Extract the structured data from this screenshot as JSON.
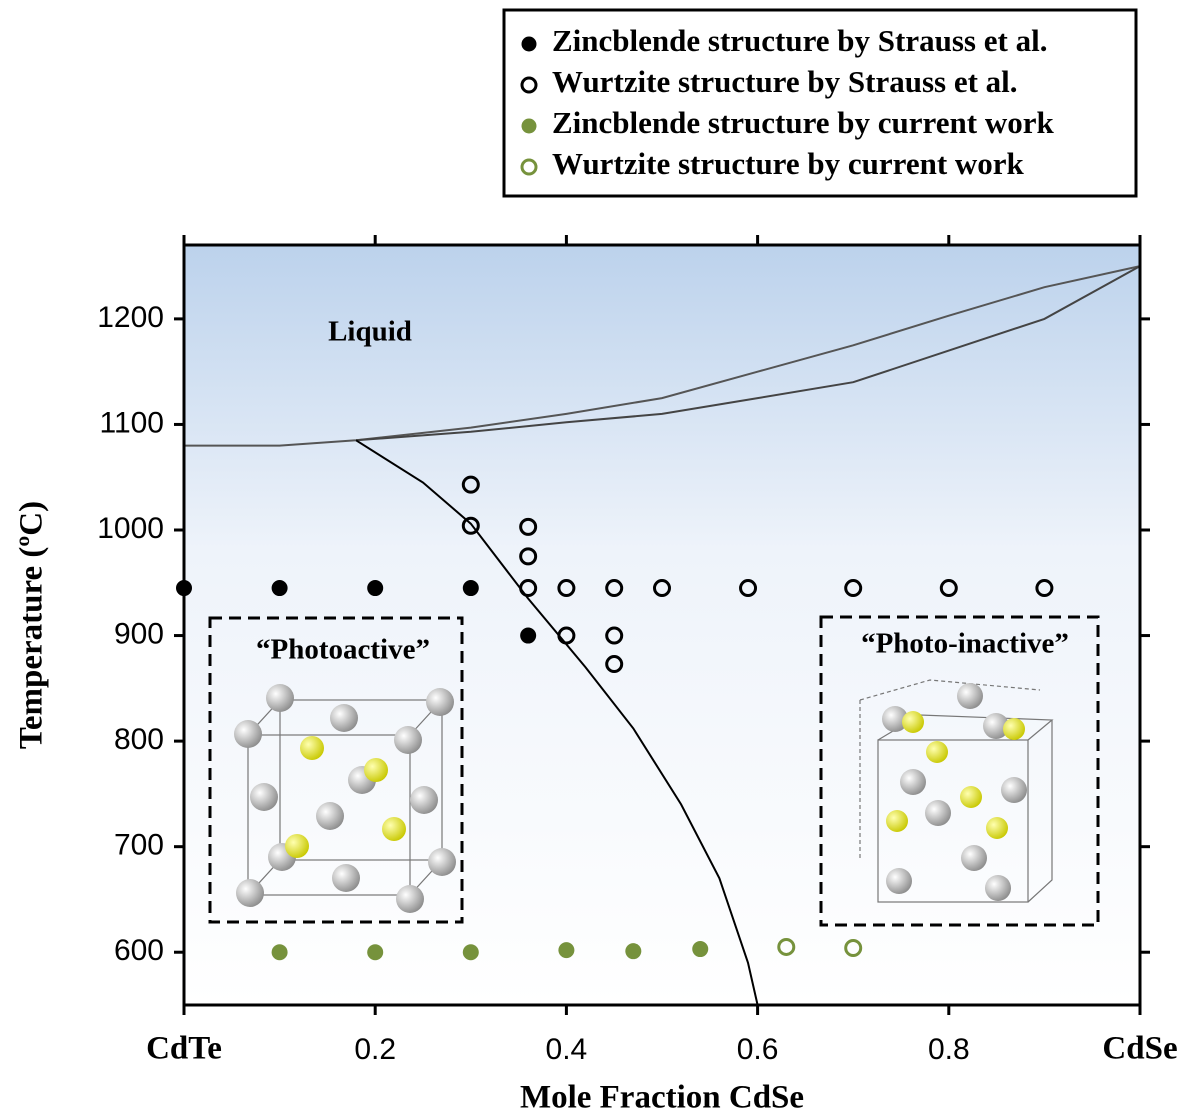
{
  "chart_data": {
    "type": "scatter",
    "x_label": "Mole Fraction CdSe",
    "y_label": "Temperature (ºC)",
    "xlim": [
      0,
      1
    ],
    "ylim": [
      550,
      1270
    ],
    "xticks": [
      {
        "value": 0,
        "label": "CdTe"
      },
      0.2,
      0.4,
      0.6,
      0.8,
      {
        "value": 1,
        "label": "CdSe"
      }
    ],
    "yticks": [
      600,
      700,
      800,
      900,
      1000,
      1100,
      1200
    ],
    "annotations": [
      "Liquid",
      "“Photoactive”",
      "“Photo-inactive”"
    ],
    "series": [
      {
        "name": "Zincblende structure by Strauss et al.",
        "color": "#000000",
        "marker": "filled",
        "x": [
          0,
          0.1,
          0.2,
          0.3,
          0.36
        ],
        "y": [
          945,
          945,
          945,
          945,
          900
        ]
      },
      {
        "name": "Wurtzite structure by Strauss et al.",
        "color": "#000000",
        "marker": "open",
        "x": [
          0.3,
          0.3,
          0.36,
          0.36,
          0.36,
          0.4,
          0.45,
          0.5,
          0.59,
          0.7,
          0.8,
          0.9,
          0.4,
          0.45,
          0.45
        ],
        "y": [
          1043,
          1004,
          1003,
          975,
          945,
          945,
          945,
          945,
          945,
          945,
          945,
          945,
          900,
          900,
          873
        ]
      },
      {
        "name": "Zincblende structure by current work",
        "color": "#76923c",
        "marker": "filled",
        "x": [
          0.1,
          0.2,
          0.3,
          0.4,
          0.47,
          0.54
        ],
        "y": [
          600,
          600,
          600,
          602,
          601,
          603
        ]
      },
      {
        "name": "Wurtzite structure by current work",
        "color": "#76923c",
        "marker": "open",
        "x": [
          0.63,
          0.7
        ],
        "y": [
          605,
          604
        ]
      }
    ],
    "curves": [
      {
        "color": "#555555",
        "x": [
          0,
          0.1,
          0.18,
          0.3,
          0.4,
          0.5,
          0.6,
          0.7,
          0.8,
          0.9,
          1.0
        ],
        "y": [
          1080,
          1080,
          1085,
          1097,
          1110,
          1125,
          1150,
          1175,
          1203,
          1230,
          1250
        ]
      },
      {
        "color": "#444444",
        "x": [
          0.18,
          0.3,
          0.4,
          0.5,
          0.6,
          0.7,
          0.8,
          0.9,
          1.0
        ],
        "y": [
          1085,
          1093,
          1102,
          1110,
          1125,
          1140,
          1170,
          1200,
          1250
        ]
      },
      {
        "color": "#000000",
        "x": [
          0.18,
          0.25,
          0.3,
          0.36,
          0.42,
          0.47,
          0.52,
          0.56,
          0.59,
          0.6
        ],
        "y": [
          1085,
          1045,
          1006,
          935,
          870,
          812,
          740,
          670,
          590,
          550
        ]
      }
    ]
  }
}
